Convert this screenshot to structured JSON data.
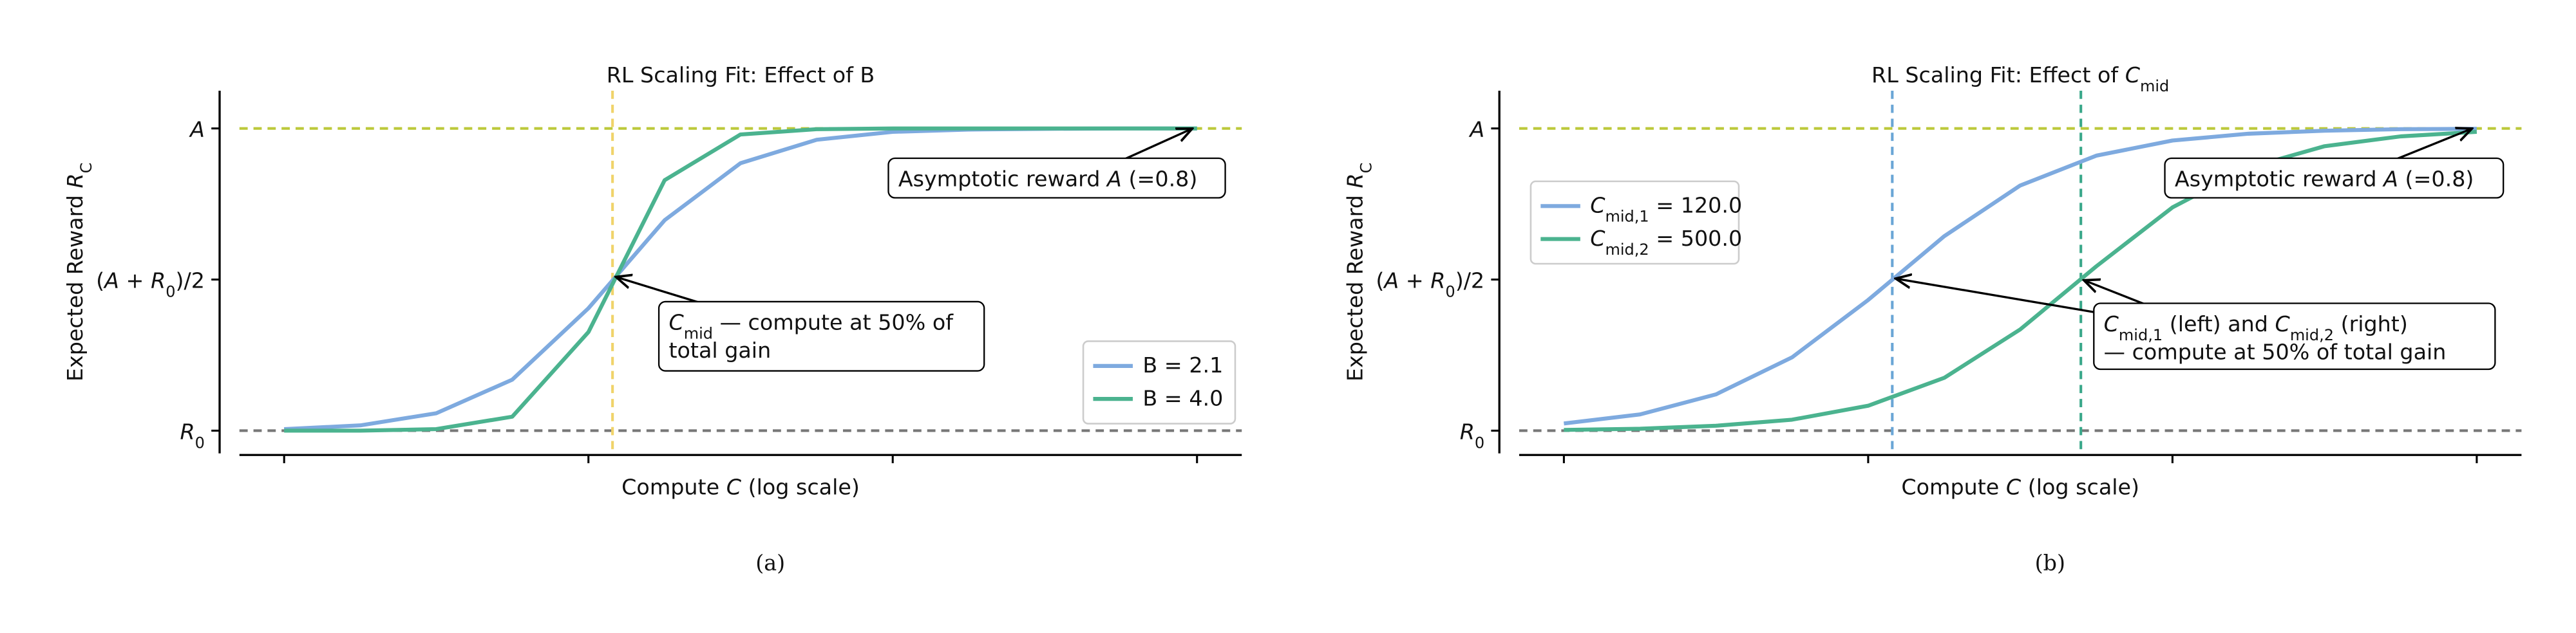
{
  "chart_data": [
    {
      "type": "line",
      "title": "RL Scaling Fit: Effect of B",
      "xlabel": [
        {
          "text": "Compute  "
        },
        {
          "text": "C",
          "style": "italic"
        },
        {
          "text": "  (log scale)"
        }
      ],
      "ylabel": [
        {
          "text": "Expected Reward  "
        },
        {
          "text": "R",
          "style": "italic"
        },
        {
          "text": "C",
          "style": "sub"
        }
      ],
      "caption": "(a)",
      "xscale": "log",
      "xlim": [
        7.13,
        14030
      ],
      "xticks": [
        10,
        100,
        1000,
        10000
      ],
      "ylim": [
        -0.06,
        0.9
      ],
      "yticks": [
        {
          "value": 0,
          "label": [
            {
              "text": "R",
              "style": "italic"
            },
            {
              "text": "0",
              "style": "sub"
            }
          ]
        },
        {
          "value": 0.4,
          "label": [
            {
              "text": "("
            },
            {
              "text": "A",
              "style": "italic"
            },
            {
              "text": " + "
            },
            {
              "text": "R",
              "style": "italic"
            },
            {
              "text": "0",
              "style": "sub"
            },
            {
              "text": ")/2"
            }
          ]
        },
        {
          "value": 0.8,
          "label": [
            {
              "text": "A",
              "style": "italic"
            }
          ]
        }
      ],
      "hlines": [
        {
          "y": 0.8,
          "color": "#bcc93a"
        },
        {
          "y": 0,
          "color": "#777777"
        }
      ],
      "vlines": [
        {
          "x": 120,
          "color": "#f0d36a"
        }
      ],
      "x": [
        10,
        17.8,
        31.6,
        56.2,
        100,
        178,
        316,
        562,
        1000,
        1778,
        3162,
        5623,
        10000
      ],
      "series": [
        {
          "name": [
            {
              "text": "B = 2.1"
            }
          ],
          "color": "#7eaadf",
          "values": [
            0.004,
            0.014,
            0.046,
            0.135,
            0.324,
            0.557,
            0.708,
            0.77,
            0.791,
            0.797,
            0.799,
            0.8,
            0.8
          ]
        },
        {
          "name": [
            {
              "text": "B = 4.0"
            }
          ],
          "color": "#4bb38f",
          "values": [
            0.0,
            0.0,
            0.004,
            0.037,
            0.261,
            0.663,
            0.784,
            0.798,
            0.8,
            0.8,
            0.8,
            0.8,
            0.8
          ]
        }
      ],
      "legend": "lower right",
      "annotations": [
        {
          "lines": [
            [
              {
                "text": "Asymptotic reward "
              },
              {
                "text": "A",
                "style": "italic"
              },
              {
                "text": " (=0.8)"
              }
            ]
          ]
        },
        {
          "lines": [
            [
              {
                "text": "C",
                "style": "italic"
              },
              {
                "text": "mid",
                "style": "sub"
              },
              {
                "text": " — compute at 50% of"
              }
            ],
            [
              {
                "text": "total gain"
              }
            ]
          ]
        }
      ]
    },
    {
      "type": "line",
      "title": [
        {
          "text": "RL Scaling Fit: Effect of "
        },
        {
          "text": "C",
          "style": "italic"
        },
        {
          "text": "mid",
          "style": "sub"
        }
      ],
      "xlabel": [
        {
          "text": "Compute  "
        },
        {
          "text": "C",
          "style": "italic"
        },
        {
          "text": "  (log scale)"
        }
      ],
      "ylabel": [
        {
          "text": "Expected Reward  "
        },
        {
          "text": "R",
          "style": "italic"
        },
        {
          "text": "C",
          "style": "sub"
        }
      ],
      "caption": "(b)",
      "xscale": "log",
      "xlim": [
        7.13,
        14030
      ],
      "xticks": [
        10,
        100,
        1000,
        10000
      ],
      "ylim": [
        -0.06,
        0.9
      ],
      "yticks": [
        {
          "value": 0,
          "label": [
            {
              "text": "R",
              "style": "italic"
            },
            {
              "text": "0",
              "style": "sub"
            }
          ]
        },
        {
          "value": 0.4,
          "label": [
            {
              "text": "("
            },
            {
              "text": "A",
              "style": "italic"
            },
            {
              "text": " + "
            },
            {
              "text": "R",
              "style": "italic"
            },
            {
              "text": "0",
              "style": "sub"
            },
            {
              "text": ")/2"
            }
          ]
        },
        {
          "value": 0.8,
          "label": [
            {
              "text": "A",
              "style": "italic"
            }
          ]
        }
      ],
      "hlines": [
        {
          "y": 0.8,
          "color": "#bcc93a"
        },
        {
          "y": 0,
          "color": "#777777"
        }
      ],
      "vlines": [
        {
          "x": 120,
          "color": "#6aa6d6"
        },
        {
          "x": 500,
          "color": "#3aa88a"
        }
      ],
      "x": [
        10,
        17.8,
        31.6,
        56.2,
        100,
        178,
        316,
        562,
        1000,
        1778,
        3162,
        5623,
        10000
      ],
      "series": [
        {
          "name": [
            {
              "text": "C",
              "style": "italic"
            },
            {
              "text": "mid,1",
              "style": "sub"
            },
            {
              "text": " = 120.0"
            }
          ],
          "color": "#7eaadf",
          "values": [
            0.019,
            0.043,
            0.096,
            0.194,
            0.346,
            0.515,
            0.649,
            0.728,
            0.768,
            0.786,
            0.794,
            0.798,
            0.799
          ]
        },
        {
          "name": [
            {
              "text": "C",
              "style": "italic"
            },
            {
              "text": "mid,2",
              "style": "sub"
            },
            {
              "text": " = 500.0"
            }
          ],
          "color": "#4bb38f",
          "values": [
            0.002,
            0.005,
            0.013,
            0.029,
            0.066,
            0.14,
            0.268,
            0.435,
            0.591,
            0.696,
            0.753,
            0.779,
            0.791
          ]
        }
      ],
      "legend": "center left",
      "annotations": [
        {
          "lines": [
            [
              {
                "text": "Asymptotic reward "
              },
              {
                "text": "A",
                "style": "italic"
              },
              {
                "text": " (=0.8)"
              }
            ]
          ]
        },
        {
          "lines": [
            [
              {
                "text": "C",
                "style": "italic"
              },
              {
                "text": "mid,1",
                "style": "sub"
              },
              {
                "text": " (left) and "
              },
              {
                "text": "C",
                "style": "italic"
              },
              {
                "text": "mid,2",
                "style": "sub"
              },
              {
                "text": " (right)"
              }
            ],
            [
              {
                "text": " — compute at 50% of total gain"
              }
            ]
          ]
        }
      ]
    }
  ]
}
